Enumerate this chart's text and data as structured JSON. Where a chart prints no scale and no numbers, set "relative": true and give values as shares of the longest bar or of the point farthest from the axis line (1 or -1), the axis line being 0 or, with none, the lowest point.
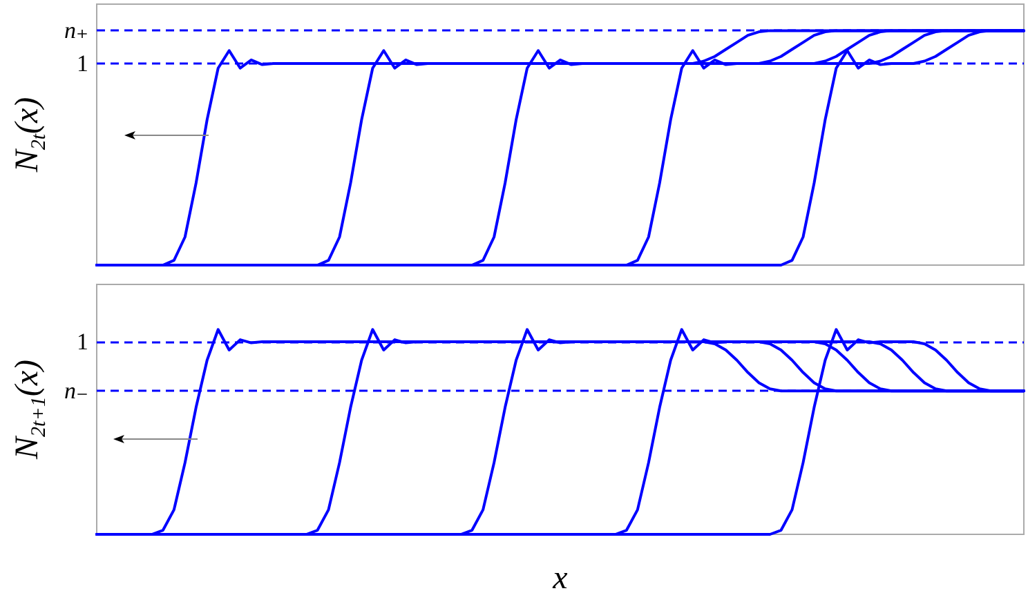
{
  "chart_data": [
    {
      "type": "line",
      "ylabel": "N$_{2t}$(x)",
      "relative": true,
      "line_style": "solid",
      "categories": [
        null,
        null,
        null,
        null,
        null,
        null,
        null,
        null,
        null,
        null,
        null,
        null,
        null,
        null,
        null,
        null,
        null,
        null,
        null,
        null,
        null,
        null,
        null,
        null,
        null,
        null,
        null,
        null,
        null,
        null,
        null,
        null,
        null,
        null,
        null,
        null,
        null,
        null,
        null,
        null,
        null,
        null,
        null,
        null,
        null,
        null,
        null,
        null,
        null,
        null,
        null,
        null,
        null,
        null,
        null,
        null,
        null,
        null,
        null,
        null,
        null,
        null,
        null,
        null,
        null,
        null,
        null,
        null,
        null,
        null,
        null,
        null,
        null,
        null,
        null,
        null,
        null,
        null,
        null,
        null,
        null,
        null,
        null,
        null,
        null
      ],
      "series": [
        {
          "color": "#0000ff",
          "values": [
            0,
            0,
            0,
            0,
            0,
            0,
            0,
            0.02,
            0.12,
            0.35,
            0.62,
            0.84,
            0.915,
            0.84,
            0.875,
            0.855,
            0.86,
            0.86,
            0.86,
            0.86,
            0.86,
            0.86,
            0.86,
            0.86,
            0.86,
            0.86,
            0.86,
            0.86,
            0.86,
            0.86,
            0.86,
            0.86,
            0.86,
            0.86,
            0.86,
            0.86,
            0.86,
            0.86,
            0.86,
            0.86,
            0.86,
            0.86,
            0.86,
            0.86,
            0.86,
            0.86,
            0.86,
            0.86,
            0.86,
            0.86,
            0.86,
            0.86,
            0.86,
            0.86,
            0.86,
            0.87,
            0.89,
            0.92,
            0.95,
            0.98,
            0.995,
            1,
            1,
            1,
            1,
            1,
            1,
            1,
            1,
            1,
            1,
            1,
            1,
            1,
            1,
            1,
            1,
            1,
            1,
            1,
            1,
            1,
            1,
            1,
            1
          ]
        },
        {
          "color": "#0000ff",
          "values": [
            0,
            0,
            0,
            0,
            0,
            0,
            0,
            0,
            0,
            0,
            0,
            0,
            0,
            0,
            0,
            0,
            0,
            0,
            0,
            0,
            0,
            0.02,
            0.12,
            0.35,
            0.62,
            0.84,
            0.915,
            0.84,
            0.875,
            0.855,
            0.86,
            0.86,
            0.86,
            0.86,
            0.86,
            0.86,
            0.86,
            0.86,
            0.86,
            0.86,
            0.86,
            0.86,
            0.86,
            0.86,
            0.86,
            0.86,
            0.86,
            0.86,
            0.86,
            0.86,
            0.86,
            0.86,
            0.86,
            0.86,
            0.86,
            0.86,
            0.86,
            0.86,
            0.86,
            0.86,
            0.86,
            0.87,
            0.89,
            0.92,
            0.95,
            0.98,
            0.995,
            1,
            1,
            1,
            1,
            1,
            1,
            1,
            1,
            1,
            1,
            1,
            1,
            1,
            1,
            1,
            1,
            1,
            1
          ]
        },
        {
          "color": "#0000ff",
          "values": [
            0,
            0,
            0,
            0,
            0,
            0,
            0,
            0,
            0,
            0,
            0,
            0,
            0,
            0,
            0,
            0,
            0,
            0,
            0,
            0,
            0,
            0,
            0,
            0,
            0,
            0,
            0,
            0,
            0,
            0,
            0,
            0,
            0,
            0,
            0,
            0.02,
            0.12,
            0.35,
            0.62,
            0.84,
            0.915,
            0.84,
            0.875,
            0.855,
            0.86,
            0.86,
            0.86,
            0.86,
            0.86,
            0.86,
            0.86,
            0.86,
            0.86,
            0.86,
            0.86,
            0.86,
            0.86,
            0.86,
            0.86,
            0.86,
            0.86,
            0.86,
            0.86,
            0.86,
            0.86,
            0.86,
            0.87,
            0.89,
            0.92,
            0.95,
            0.98,
            0.995,
            1,
            1,
            1,
            1,
            1,
            1,
            1,
            1,
            1,
            1,
            1,
            1,
            1
          ]
        },
        {
          "color": "#0000ff",
          "values": [
            0,
            0,
            0,
            0,
            0,
            0,
            0,
            0,
            0,
            0,
            0,
            0,
            0,
            0,
            0,
            0,
            0,
            0,
            0,
            0,
            0,
            0,
            0,
            0,
            0,
            0,
            0,
            0,
            0,
            0,
            0,
            0,
            0,
            0,
            0,
            0,
            0,
            0,
            0,
            0,
            0,
            0,
            0,
            0,
            0,
            0,
            0,
            0,
            0,
            0.02,
            0.12,
            0.35,
            0.62,
            0.84,
            0.915,
            0.84,
            0.875,
            0.855,
            0.86,
            0.86,
            0.86,
            0.86,
            0.86,
            0.86,
            0.86,
            0.86,
            0.86,
            0.86,
            0.86,
            0.86,
            0.86,
            0.87,
            0.89,
            0.92,
            0.95,
            0.98,
            0.995,
            1,
            1,
            1,
            1,
            1,
            1,
            1,
            1
          ]
        },
        {
          "color": "#0000ff",
          "values": [
            0,
            0,
            0,
            0,
            0,
            0,
            0,
            0,
            0,
            0,
            0,
            0,
            0,
            0,
            0,
            0,
            0,
            0,
            0,
            0,
            0,
            0,
            0,
            0,
            0,
            0,
            0,
            0,
            0,
            0,
            0,
            0,
            0,
            0,
            0,
            0,
            0,
            0,
            0,
            0,
            0,
            0,
            0,
            0,
            0,
            0,
            0,
            0,
            0,
            0,
            0,
            0,
            0,
            0,
            0,
            0,
            0,
            0,
            0,
            0,
            0,
            0,
            0,
            0.02,
            0.12,
            0.35,
            0.62,
            0.84,
            0.915,
            0.84,
            0.875,
            0.855,
            0.86,
            0.86,
            0.86,
            0.87,
            0.89,
            0.92,
            0.95,
            0.98,
            0.995,
            1,
            1,
            1,
            1
          ]
        }
      ],
      "ref_lines": [
        {
          "axis": "y",
          "value": 1,
          "label": "n₊",
          "color": "#0000ff",
          "line_style": "dashed"
        },
        {
          "axis": "y",
          "value": 0.86,
          "label": "1",
          "color": "#0000ff",
          "line_style": "dashed"
        }
      ]
    },
    {
      "type": "line",
      "xlabel": "x",
      "ylabel": "N$_{2t+1}$(x)",
      "relative": true,
      "line_style": "solid",
      "categories": [
        null,
        null,
        null,
        null,
        null,
        null,
        null,
        null,
        null,
        null,
        null,
        null,
        null,
        null,
        null,
        null,
        null,
        null,
        null,
        null,
        null,
        null,
        null,
        null,
        null,
        null,
        null,
        null,
        null,
        null,
        null,
        null,
        null,
        null,
        null,
        null,
        null,
        null,
        null,
        null,
        null,
        null,
        null,
        null,
        null,
        null,
        null,
        null,
        null,
        null,
        null,
        null,
        null,
        null,
        null,
        null,
        null,
        null,
        null,
        null,
        null,
        null,
        null,
        null,
        null,
        null,
        null,
        null,
        null,
        null,
        null,
        null,
        null,
        null,
        null,
        null,
        null,
        null,
        null,
        null,
        null,
        null,
        null,
        null,
        null
      ],
      "series": [
        {
          "color": "#0000ff",
          "values": [
            0,
            0,
            0,
            0,
            0,
            0,
            0.02,
            0.12,
            0.35,
            0.62,
            0.85,
            1,
            0.9,
            0.95,
            0.935,
            0.94,
            0.94,
            0.94,
            0.94,
            0.94,
            0.94,
            0.94,
            0.94,
            0.94,
            0.94,
            0.94,
            0.94,
            0.94,
            0.94,
            0.94,
            0.94,
            0.94,
            0.94,
            0.94,
            0.94,
            0.94,
            0.94,
            0.94,
            0.94,
            0.94,
            0.94,
            0.94,
            0.94,
            0.94,
            0.94,
            0.94,
            0.94,
            0.94,
            0.94,
            0.94,
            0.94,
            0.94,
            0.94,
            0.94,
            0.94,
            0.94,
            0.93,
            0.9,
            0.85,
            0.79,
            0.74,
            0.71,
            0.7,
            0.7,
            0.7,
            0.7,
            0.7,
            0.7,
            0.7,
            0.7,
            0.7,
            0.7,
            0.7,
            0.7,
            0.7,
            0.7,
            0.7,
            0.7,
            0.7,
            0.7,
            0.7,
            0.7,
            0.7,
            0.7,
            0.7
          ]
        },
        {
          "color": "#0000ff",
          "values": [
            0,
            0,
            0,
            0,
            0,
            0,
            0,
            0,
            0,
            0,
            0,
            0,
            0,
            0,
            0,
            0,
            0,
            0,
            0,
            0,
            0.02,
            0.12,
            0.35,
            0.62,
            0.85,
            1,
            0.9,
            0.95,
            0.935,
            0.94,
            0.94,
            0.94,
            0.94,
            0.94,
            0.94,
            0.94,
            0.94,
            0.94,
            0.94,
            0.94,
            0.94,
            0.94,
            0.94,
            0.94,
            0.94,
            0.94,
            0.94,
            0.94,
            0.94,
            0.94,
            0.94,
            0.94,
            0.94,
            0.94,
            0.94,
            0.94,
            0.94,
            0.94,
            0.94,
            0.94,
            0.94,
            0.93,
            0.9,
            0.85,
            0.79,
            0.74,
            0.71,
            0.7,
            0.7,
            0.7,
            0.7,
            0.7,
            0.7,
            0.7,
            0.7,
            0.7,
            0.7,
            0.7,
            0.7,
            0.7,
            0.7,
            0.7,
            0.7,
            0.7,
            0.7
          ]
        },
        {
          "color": "#0000ff",
          "values": [
            0,
            0,
            0,
            0,
            0,
            0,
            0,
            0,
            0,
            0,
            0,
            0,
            0,
            0,
            0,
            0,
            0,
            0,
            0,
            0,
            0,
            0,
            0,
            0,
            0,
            0,
            0,
            0,
            0,
            0,
            0,
            0,
            0,
            0,
            0.02,
            0.12,
            0.35,
            0.62,
            0.85,
            1,
            0.9,
            0.95,
            0.935,
            0.94,
            0.94,
            0.94,
            0.94,
            0.94,
            0.94,
            0.94,
            0.94,
            0.94,
            0.94,
            0.94,
            0.94,
            0.94,
            0.94,
            0.94,
            0.94,
            0.94,
            0.94,
            0.94,
            0.94,
            0.94,
            0.94,
            0.94,
            0.93,
            0.9,
            0.85,
            0.79,
            0.74,
            0.71,
            0.7,
            0.7,
            0.7,
            0.7,
            0.7,
            0.7,
            0.7,
            0.7,
            0.7,
            0.7,
            0.7,
            0.7,
            0.7
          ]
        },
        {
          "color": "#0000ff",
          "values": [
            0,
            0,
            0,
            0,
            0,
            0,
            0,
            0,
            0,
            0,
            0,
            0,
            0,
            0,
            0,
            0,
            0,
            0,
            0,
            0,
            0,
            0,
            0,
            0,
            0,
            0,
            0,
            0,
            0,
            0,
            0,
            0,
            0,
            0,
            0,
            0,
            0,
            0,
            0,
            0,
            0,
            0,
            0,
            0,
            0,
            0,
            0,
            0,
            0.02,
            0.12,
            0.35,
            0.62,
            0.85,
            1,
            0.9,
            0.95,
            0.935,
            0.94,
            0.94,
            0.94,
            0.94,
            0.94,
            0.94,
            0.94,
            0.94,
            0.94,
            0.94,
            0.94,
            0.94,
            0.94,
            0.94,
            0.93,
            0.9,
            0.85,
            0.79,
            0.74,
            0.71,
            0.7,
            0.7,
            0.7,
            0.7,
            0.7,
            0.7,
            0.7,
            0.7
          ]
        },
        {
          "color": "#0000ff",
          "values": [
            0,
            0,
            0,
            0,
            0,
            0,
            0,
            0,
            0,
            0,
            0,
            0,
            0,
            0,
            0,
            0,
            0,
            0,
            0,
            0,
            0,
            0,
            0,
            0,
            0,
            0,
            0,
            0,
            0,
            0,
            0,
            0,
            0,
            0,
            0,
            0,
            0,
            0,
            0,
            0,
            0,
            0,
            0,
            0,
            0,
            0,
            0,
            0,
            0,
            0,
            0,
            0,
            0,
            0,
            0,
            0,
            0,
            0,
            0,
            0,
            0,
            0,
            0.02,
            0.12,
            0.35,
            0.62,
            0.85,
            1,
            0.9,
            0.95,
            0.935,
            0.94,
            0.94,
            0.94,
            0.94,
            0.93,
            0.9,
            0.85,
            0.79,
            0.74,
            0.71,
            0.7,
            0.7,
            0.7,
            0.7
          ]
        }
      ],
      "ref_lines": [
        {
          "axis": "y",
          "value": 0.94,
          "label": "1",
          "color": "#0000ff",
          "line_style": "dashed"
        },
        {
          "axis": "y",
          "value": 0.7,
          "label": "n₋",
          "color": "#0000ff",
          "line_style": "dashed"
        }
      ]
    }
  ]
}
